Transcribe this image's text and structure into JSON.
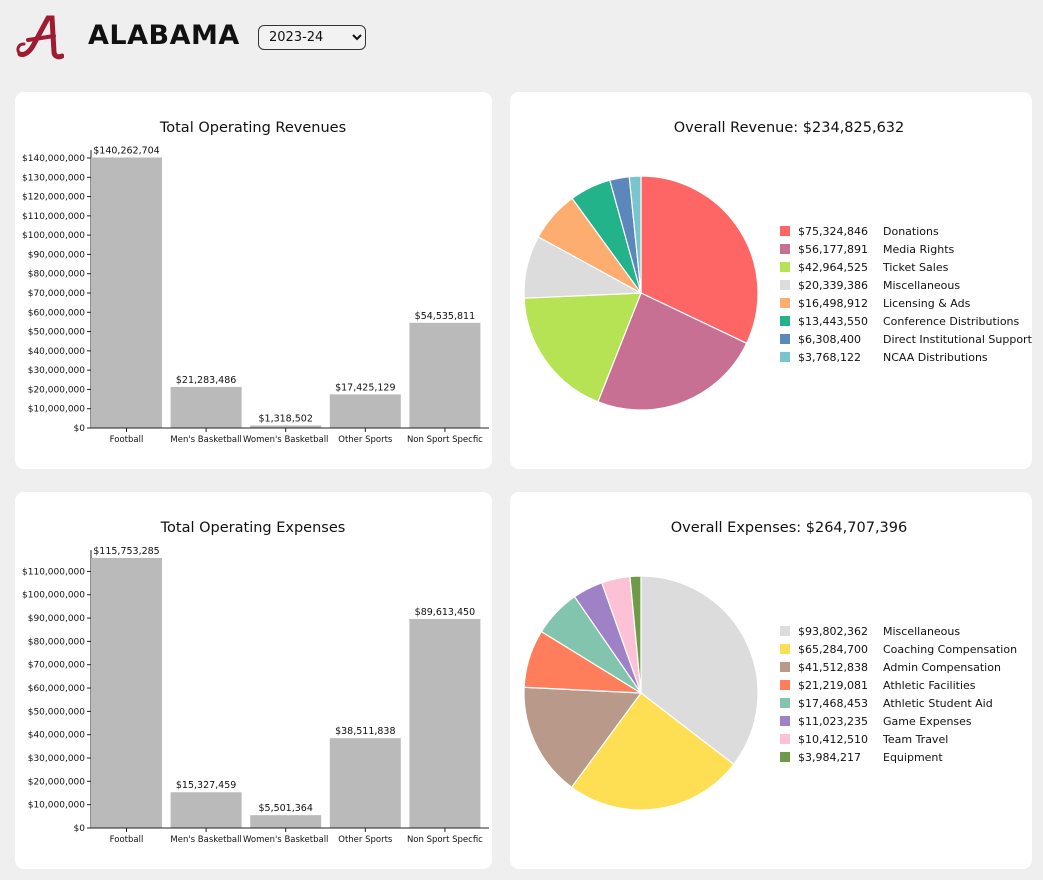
{
  "header": {
    "school_name": "ALABAMA",
    "logo_icon": "script-a-logo-icon",
    "season_select": {
      "selected": "2023-24"
    },
    "brand_color": "#9e1b32"
  },
  "chart_data": [
    {
      "id": "revenue-bar",
      "type": "bar",
      "title": "Total Operating Revenues",
      "categories": [
        "Football",
        "Men's Basketball",
        "Women's Basketball",
        "Other Sports",
        "Non Sport Specfic"
      ],
      "values": [
        140262704,
        21283486,
        1318502,
        17425129,
        54535811
      ],
      "value_labels": [
        "$140,262,704",
        "$21,283,486",
        "$1,318,502",
        "$17,425,129",
        "$54,535,811"
      ],
      "ylim": [
        0,
        140000000
      ],
      "y_ticks": [
        0,
        10000000,
        20000000,
        30000000,
        40000000,
        50000000,
        60000000,
        70000000,
        80000000,
        90000000,
        100000000,
        110000000,
        120000000,
        130000000,
        140000000
      ],
      "y_tick_labels": [
        "$0",
        "$10,000,000",
        "$20,000,000",
        "$30,000,000",
        "$40,000,000",
        "$50,000,000",
        "$60,000,000",
        "$70,000,000",
        "$80,000,000",
        "$90,000,000",
        "$100,000,000",
        "$110,000,000",
        "$120,000,000",
        "$130,000,000",
        "$140,000,000"
      ],
      "bar_color": "#bababa",
      "grid": false
    },
    {
      "id": "revenue-pie",
      "type": "pie",
      "title": "Overall Revenue: $234,825,632",
      "labels": [
        "Donations",
        "Media Rights",
        "Ticket Sales",
        "Miscellaneous",
        "Licensing & Ads",
        "Conference Distributions",
        "Direct Institutional Support",
        "NCAA Distributions"
      ],
      "values": [
        75324846,
        56177891,
        42964525,
        20339386,
        16498912,
        13443550,
        6308400,
        3768122
      ],
      "value_labels": [
        "$75,324,846",
        "$56,177,891",
        "$42,964,525",
        "$20,339,386",
        "$16,498,912",
        "$13,443,550",
        "$6,308,400",
        "$3,768,122"
      ],
      "colors": [
        "#fe6666",
        "#c86f94",
        "#b5e353",
        "#dcdcdc",
        "#fdad6f",
        "#23b38a",
        "#5c87bb",
        "#79c5cd"
      ],
      "legend": "right"
    },
    {
      "id": "expense-bar",
      "type": "bar",
      "title": "Total Operating Expenses",
      "categories": [
        "Football",
        "Men's Basketball",
        "Women's Basketball",
        "Other Sports",
        "Non Sport Specfic"
      ],
      "values": [
        115753285,
        15327459,
        5501364,
        38511838,
        89613450
      ],
      "value_labels": [
        "$115,753,285",
        "$15,327,459",
        "$5,501,364",
        "$38,511,838",
        "$89,613,450"
      ],
      "ylim": [
        0,
        115753285
      ],
      "y_ticks": [
        0,
        10000000,
        20000000,
        30000000,
        40000000,
        50000000,
        60000000,
        70000000,
        80000000,
        90000000,
        100000000,
        110000000
      ],
      "y_tick_labels": [
        "$0",
        "$10,000,000",
        "$20,000,000",
        "$30,000,000",
        "$40,000,000",
        "$50,000,000",
        "$60,000,000",
        "$70,000,000",
        "$80,000,000",
        "$90,000,000",
        "$100,000,000",
        "$110,000,000"
      ],
      "bar_color": "#bababa",
      "grid": false
    },
    {
      "id": "expense-pie",
      "type": "pie",
      "title": "Overall Expenses: $264,707,396",
      "labels": [
        "Miscellaneous",
        "Coaching Compensation",
        "Admin Compensation",
        "Athletic Facilities",
        "Athletic Student Aid",
        "Game Expenses",
        "Team Travel",
        "Equipment"
      ],
      "values": [
        93802362,
        65284700,
        41512838,
        21219081,
        17468453,
        11023235,
        10412510,
        3984217
      ],
      "value_labels": [
        "$93,802,362",
        "$65,284,700",
        "$41,512,838",
        "$21,219,081",
        "$17,468,453",
        "$11,023,235",
        "$10,412,510",
        "$3,984,217"
      ],
      "colors": [
        "#dcdcdc",
        "#fede52",
        "#b99a8a",
        "#fe7d5a",
        "#82c4ad",
        "#9f82c6",
        "#fcc1d5",
        "#6f9a47"
      ],
      "legend": "right"
    }
  ]
}
